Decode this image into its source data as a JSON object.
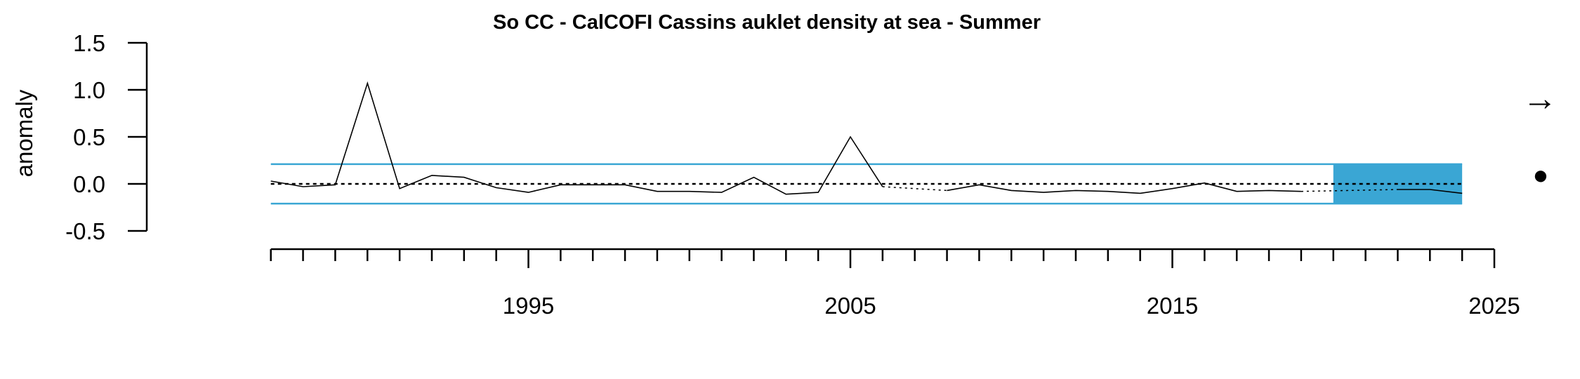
{
  "chart_data": {
    "type": "line",
    "title": "So CC - CalCOFI Cassins auklet density at sea - Summer",
    "ylabel": "anomaly",
    "xlabel": "",
    "xlim": [
      1985,
      2025
    ],
    "ylim": [
      -0.5,
      1.5
    ],
    "yticks": [
      "1.5",
      "1.0",
      "0.5",
      "0.0",
      "-0.5"
    ],
    "ytick_values": [
      1.5,
      1.0,
      0.5,
      0.0,
      -0.5
    ],
    "xticks": [
      "1995",
      "2005",
      "2015",
      "2025"
    ],
    "xtick_values": [
      1995,
      2005,
      2015,
      2025
    ],
    "x_minor_ticks_from": 1987,
    "x_minor_ticks_to": 2025,
    "mean": 0.0,
    "sd_band": [
      -0.21,
      0.21
    ],
    "recent_window": [
      2020,
      2024
    ],
    "series": [
      {
        "style": "solid",
        "x": [
          1987,
          1988,
          1989,
          1990,
          1991,
          1992,
          1993,
          1994,
          1995,
          1996,
          1997,
          1998,
          1999,
          2000,
          2001,
          2002,
          2003,
          2004,
          2005,
          2006
        ],
        "values": [
          0.03,
          -0.03,
          -0.01,
          1.07,
          -0.05,
          0.09,
          0.07,
          -0.04,
          -0.09,
          -0.01,
          -0.01,
          -0.01,
          -0.08,
          -0.08,
          -0.09,
          0.07,
          -0.11,
          -0.09,
          0.5,
          -0.03
        ]
      },
      {
        "style": "dotted",
        "x": [
          2006,
          2008
        ],
        "values": [
          -0.03,
          -0.07
        ]
      },
      {
        "style": "solid",
        "x": [
          2008,
          2009,
          2010,
          2011,
          2012,
          2013,
          2014,
          2015,
          2016,
          2017,
          2018,
          2019
        ],
        "values": [
          -0.07,
          -0.01,
          -0.07,
          -0.09,
          -0.07,
          -0.08,
          -0.1,
          -0.05,
          0.01,
          -0.08,
          -0.07,
          -0.08
        ]
      },
      {
        "style": "dotted",
        "x": [
          2019,
          2022
        ],
        "values": [
          -0.08,
          -0.06
        ]
      },
      {
        "style": "solid",
        "x": [
          2022,
          2023,
          2024
        ],
        "values": [
          -0.06,
          -0.06,
          -0.1
        ]
      }
    ],
    "colors": {
      "band": "#3AA6D4",
      "line": "#000000"
    },
    "trend_symbol": "→",
    "mean_symbol": "●"
  }
}
